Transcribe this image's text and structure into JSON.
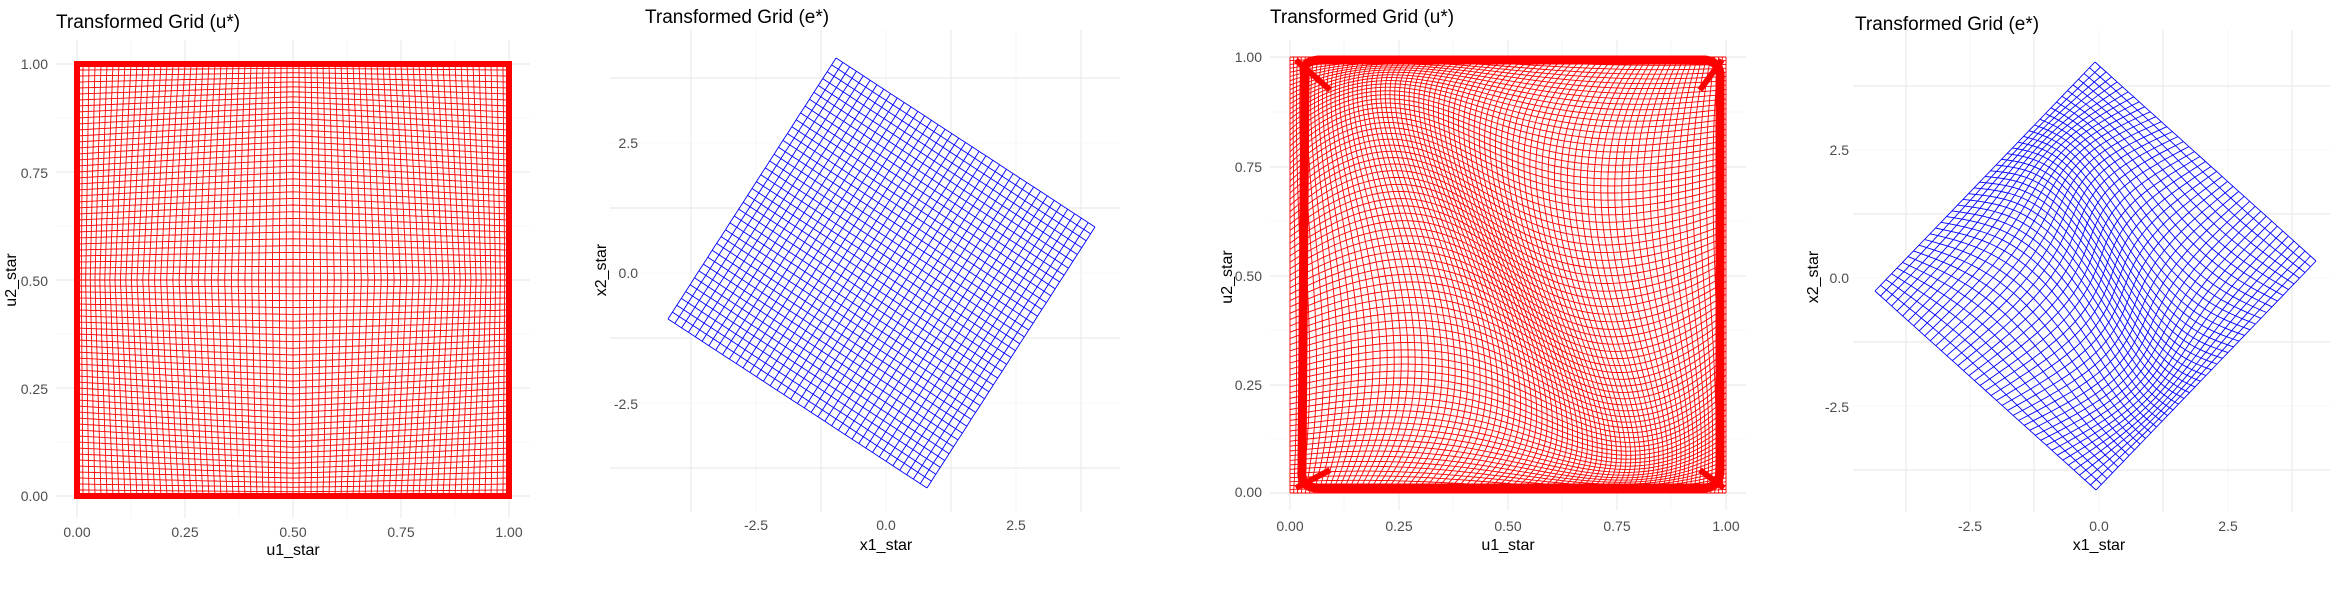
{
  "chart_data": [
    {
      "type": "line",
      "title": "Transformed Grid (u*)",
      "xlabel": "u1_star",
      "ylabel": "u2_star",
      "xlim": [
        0,
        1
      ],
      "ylim": [
        0,
        1
      ],
      "x_ticks": [
        "0.00",
        "0.25",
        "0.50",
        "0.75",
        "1.00"
      ],
      "y_ticks": [
        "0.00",
        "0.25",
        "0.50",
        "0.75",
        "1.00"
      ],
      "line_color": "#ff0000",
      "grid": true
    },
    {
      "type": "line",
      "title": "Transformed Grid (e*)",
      "xlabel": "x1_star",
      "ylabel": "x2_star",
      "xlim": [
        -4.3,
        4.3
      ],
      "ylim": [
        -4.3,
        4.3
      ],
      "x_ticks": [
        "-2.5",
        "0.0",
        "2.5"
      ],
      "y_ticks": [
        "2.5",
        "0.0",
        "-2.5"
      ],
      "line_color": "#0000ff",
      "grid": true
    },
    {
      "type": "line",
      "title": "Transformed Grid (u*)",
      "xlabel": "u1_star",
      "ylabel": "u2_star",
      "xlim": [
        0,
        1
      ],
      "ylim": [
        0,
        1
      ],
      "x_ticks": [
        "0.00",
        "0.25",
        "0.50",
        "0.75",
        "1.00"
      ],
      "y_ticks": [
        "0.00",
        "0.25",
        "0.50",
        "0.75",
        "1.00"
      ],
      "line_color": "#ff0000",
      "grid": true
    },
    {
      "type": "line",
      "title": "Transformed Grid (e*)",
      "xlabel": "x1_star",
      "ylabel": "x2_star",
      "xlim": [
        -4.3,
        4.3
      ],
      "ylim": [
        -4.3,
        4.3
      ],
      "x_ticks": [
        "-2.5",
        "0.0",
        "2.5"
      ],
      "y_ticks": [
        "2.5",
        "0.0",
        "-2.5"
      ],
      "line_color": "#0000ff",
      "grid": true
    }
  ]
}
